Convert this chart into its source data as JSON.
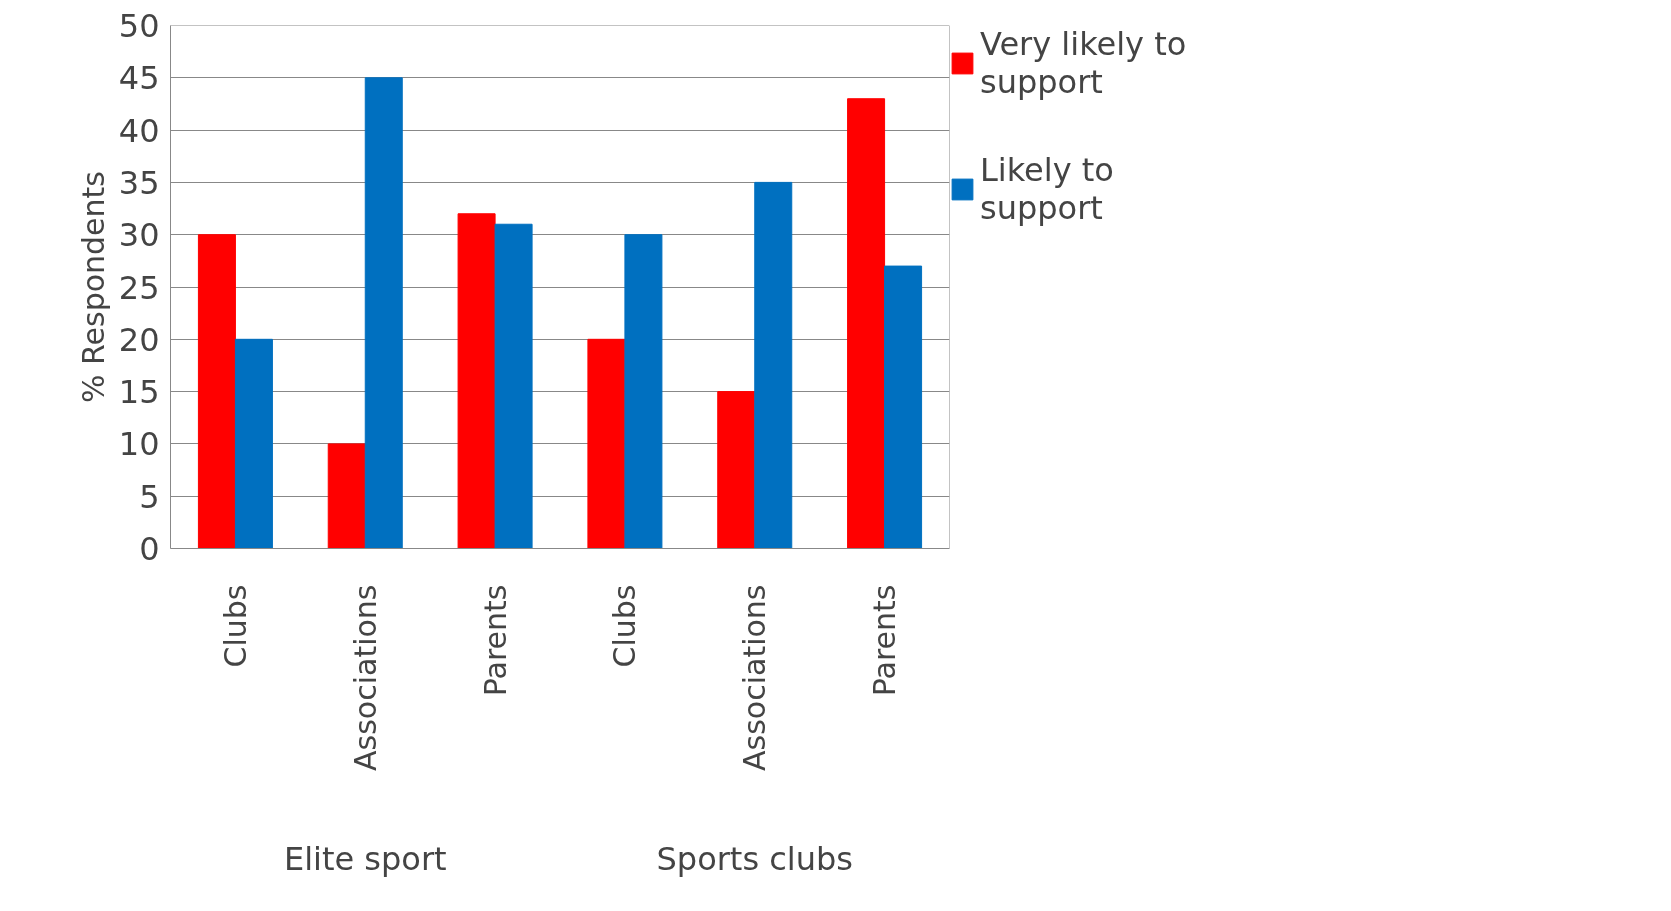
{
  "chart_data": {
    "type": "bar",
    "ylabel": "% Respondents",
    "categories": [
      "Clubs",
      "Associations",
      "Parents",
      "Clubs",
      "Associations",
      "Parents"
    ],
    "series": [
      {
        "name": "Very likely to support",
        "color": "#ff0000",
        "values": [
          30,
          10,
          32,
          20,
          15,
          43
        ]
      },
      {
        "name": "Likely to support",
        "color": "#0070c0",
        "values": [
          20,
          45,
          31,
          30,
          35,
          27
        ]
      }
    ],
    "annotations": [
      "Elite sport",
      "Sports clubs"
    ],
    "ylim": [
      0,
      50
    ],
    "yticks": [
      0,
      5,
      10,
      15,
      20,
      25,
      30,
      35,
      40,
      45,
      50
    ],
    "grid": "y",
    "legend": "right"
  }
}
